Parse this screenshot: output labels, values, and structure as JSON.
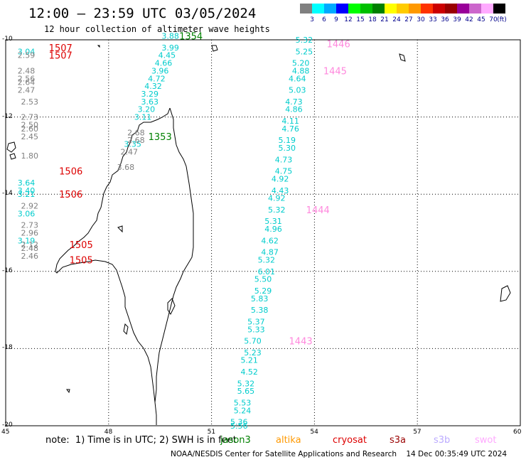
{
  "header": {
    "title": "12:00 – 23:59 UTC 03/05/2024",
    "subtitle": "12 hour collection of altimeter wave heights"
  },
  "legend": {
    "unit": "(ft)",
    "labels": [
      "3",
      "6",
      "9",
      "12",
      "15",
      "18",
      "21",
      "24",
      "27",
      "30",
      "33",
      "36",
      "39",
      "42",
      "45",
      "70"
    ],
    "colors": [
      "#808080",
      "#00ffff",
      "#00aaff",
      "#0000ff",
      "#00ff00",
      "#00c000",
      "#008000",
      "#ffff00",
      "#ffcc00",
      "#ff9900",
      "#ff3300",
      "#cc0000",
      "#990000",
      "#990099",
      "#cc66cc",
      "#ffaaff",
      "#000000"
    ]
  },
  "axes": {
    "lat_labels": [
      "-10",
      "-12",
      "-14",
      "-16",
      "-18",
      "-20"
    ],
    "lon_labels": [
      "45",
      "48",
      "51",
      "54",
      "57",
      "60"
    ]
  },
  "tracks": [
    {
      "satellite": "jason3",
      "color": "#00cccc",
      "points": [
        {
          "lat": -10.3,
          "lon": 45.6,
          "swh": "3.04"
        },
        {
          "lat": -13.7,
          "lon": 45.6,
          "swh": "3.64"
        },
        {
          "lat": -13.9,
          "lon": 45.6,
          "swh": "3.40"
        },
        {
          "lat": -14.0,
          "lon": 45.6,
          "swh": "3.21"
        },
        {
          "lat": -14.5,
          "lon": 45.6,
          "swh": "3.06"
        },
        {
          "lat": -15.2,
          "lon": 45.6,
          "swh": "3.19"
        },
        {
          "lat": -9.9,
          "lon": 49.8,
          "swh": "3.88"
        },
        {
          "lat": -10.2,
          "lon": 49.8,
          "swh": "3.99"
        },
        {
          "lat": -10.4,
          "lon": 49.7,
          "swh": "4.45"
        },
        {
          "lat": -10.6,
          "lon": 49.6,
          "swh": "4.66"
        },
        {
          "lat": -10.8,
          "lon": 49.5,
          "swh": "3.96"
        },
        {
          "lat": -11.0,
          "lon": 49.4,
          "swh": "4.72"
        },
        {
          "lat": -11.2,
          "lon": 49.3,
          "swh": "4.32"
        },
        {
          "lat": -11.4,
          "lon": 49.2,
          "swh": "3.29"
        },
        {
          "lat": -11.6,
          "lon": 49.2,
          "swh": "3.63"
        },
        {
          "lat": -11.8,
          "lon": 49.1,
          "swh": "3.20"
        },
        {
          "lat": -12.0,
          "lon": 49.0,
          "swh": "3.11"
        },
        {
          "lat": -12.7,
          "lon": 48.7,
          "swh": "3.35"
        },
        {
          "lat": -10.0,
          "lon": 53.7,
          "swh": "5.32"
        },
        {
          "lat": -10.3,
          "lon": 53.7,
          "swh": "5.25"
        },
        {
          "lat": -10.6,
          "lon": 53.6,
          "swh": "5.20"
        },
        {
          "lat": -10.8,
          "lon": 53.6,
          "swh": "4.88"
        },
        {
          "lat": -11.0,
          "lon": 53.5,
          "swh": "4.64"
        },
        {
          "lat": -11.3,
          "lon": 53.5,
          "swh": "5.03"
        },
        {
          "lat": -11.6,
          "lon": 53.4,
          "swh": "4.73"
        },
        {
          "lat": -11.8,
          "lon": 53.4,
          "swh": "4.86"
        },
        {
          "lat": -12.1,
          "lon": 53.3,
          "swh": "4.11"
        },
        {
          "lat": -12.3,
          "lon": 53.3,
          "swh": "4.76"
        },
        {
          "lat": -12.6,
          "lon": 53.2,
          "swh": "5.19"
        },
        {
          "lat": -12.8,
          "lon": 53.2,
          "swh": "5.30"
        },
        {
          "lat": -13.1,
          "lon": 53.1,
          "swh": "4.73"
        },
        {
          "lat": -13.4,
          "lon": 53.1,
          "swh": "4.75"
        },
        {
          "lat": -13.6,
          "lon": 53.0,
          "swh": "4.92"
        },
        {
          "lat": -13.9,
          "lon": 53.0,
          "swh": "4.43"
        },
        {
          "lat": -14.1,
          "lon": 52.9,
          "swh": "4.92"
        },
        {
          "lat": -14.4,
          "lon": 52.9,
          "swh": "5.32"
        },
        {
          "lat": -14.7,
          "lon": 52.8,
          "swh": "5.31"
        },
        {
          "lat": -14.9,
          "lon": 52.8,
          "swh": "4.96"
        },
        {
          "lat": -15.2,
          "lon": 52.7,
          "swh": "4.62"
        },
        {
          "lat": -15.5,
          "lon": 52.7,
          "swh": "4.87"
        },
        {
          "lat": -15.7,
          "lon": 52.6,
          "swh": "5.32"
        },
        {
          "lat": -16.0,
          "lon": 52.6,
          "swh": "6.01"
        },
        {
          "lat": -16.2,
          "lon": 52.5,
          "swh": "5.50"
        },
        {
          "lat": -16.5,
          "lon": 52.5,
          "swh": "5.29"
        },
        {
          "lat": -16.7,
          "lon": 52.4,
          "swh": "5.83"
        },
        {
          "lat": -17.0,
          "lon": 52.4,
          "swh": "5.38"
        },
        {
          "lat": -17.3,
          "lon": 52.3,
          "swh": "5.37"
        },
        {
          "lat": -17.5,
          "lon": 52.3,
          "swh": "5.33"
        },
        {
          "lat": -17.8,
          "lon": 52.2,
          "swh": "5.70"
        },
        {
          "lat": -18.1,
          "lon": 52.2,
          "swh": "5.23"
        },
        {
          "lat": -18.3,
          "lon": 52.1,
          "swh": "5.21"
        },
        {
          "lat": -18.6,
          "lon": 52.1,
          "swh": "4.52"
        },
        {
          "lat": -18.9,
          "lon": 52.0,
          "swh": "5.32"
        },
        {
          "lat": -19.1,
          "lon": 52.0,
          "swh": "5.65"
        },
        {
          "lat": -19.4,
          "lon": 51.9,
          "swh": "5.53"
        },
        {
          "lat": -19.6,
          "lon": 51.9,
          "swh": "5.24"
        },
        {
          "lat": -19.9,
          "lon": 51.8,
          "swh": "5.36"
        },
        {
          "lat": -20.0,
          "lon": 51.8,
          "swh": "5.56"
        }
      ]
    },
    {
      "satellite": "gray",
      "color": "#808080",
      "points": [
        {
          "lat": -10.4,
          "lon": 45.6,
          "swh": "2.59"
        },
        {
          "lat": -10.8,
          "lon": 45.6,
          "swh": "2.48"
        },
        {
          "lat": -11.0,
          "lon": 45.6,
          "swh": "2.56"
        },
        {
          "lat": -11.1,
          "lon": 45.6,
          "swh": "2.64"
        },
        {
          "lat": -11.3,
          "lon": 45.6,
          "swh": "2.47"
        },
        {
          "lat": -11.6,
          "lon": 45.7,
          "swh": "2.53"
        },
        {
          "lat": -12.0,
          "lon": 45.7,
          "swh": "2.73"
        },
        {
          "lat": -12.2,
          "lon": 45.7,
          "swh": "2.50"
        },
        {
          "lat": -12.3,
          "lon": 45.7,
          "swh": "2.60"
        },
        {
          "lat": -12.5,
          "lon": 45.7,
          "swh": "2.45"
        },
        {
          "lat": -13.0,
          "lon": 45.7,
          "swh": "1.80"
        },
        {
          "lat": -14.3,
          "lon": 45.7,
          "swh": "2.92"
        },
        {
          "lat": -14.8,
          "lon": 45.7,
          "swh": "2.73"
        },
        {
          "lat": -15.0,
          "lon": 45.7,
          "swh": "2.96"
        },
        {
          "lat": -15.3,
          "lon": 45.7,
          "swh": "2.12"
        },
        {
          "lat": -15.4,
          "lon": 45.7,
          "swh": "2.48"
        },
        {
          "lat": -15.6,
          "lon": 45.7,
          "swh": "2.46"
        },
        {
          "lat": -12.4,
          "lon": 48.8,
          "swh": "2.68"
        },
        {
          "lat": -12.6,
          "lon": 48.8,
          "swh": "2.68"
        },
        {
          "lat": -12.9,
          "lon": 48.6,
          "swh": "2.47"
        },
        {
          "lat": -13.3,
          "lon": 48.5,
          "swh": "3.68"
        }
      ]
    }
  ],
  "pass_labels": [
    {
      "lat": -10.2,
      "lon": 46.6,
      "text": "1507",
      "color": "#dd0000"
    },
    {
      "lat": -10.4,
      "lon": 46.6,
      "text": "1507",
      "color": "#dd0000"
    },
    {
      "lat": -13.4,
      "lon": 46.9,
      "text": "1506",
      "color": "#dd0000"
    },
    {
      "lat": -14.0,
      "lon": 46.9,
      "text": "1506",
      "color": "#dd0000"
    },
    {
      "lat": -15.3,
      "lon": 47.2,
      "text": "1505",
      "color": "#dd0000"
    },
    {
      "lat": -15.7,
      "lon": 47.2,
      "text": "1505",
      "color": "#dd0000"
    },
    {
      "lat": -9.9,
      "lon": 50.4,
      "text": "1354",
      "color": "#008000"
    },
    {
      "lat": -12.5,
      "lon": 49.5,
      "text": "1353",
      "color": "#008000"
    },
    {
      "lat": -10.1,
      "lon": 54.7,
      "text": "1446",
      "color": "#ff88dd"
    },
    {
      "lat": -10.8,
      "lon": 54.6,
      "text": "1445",
      "color": "#ff88dd"
    },
    {
      "lat": -14.4,
      "lon": 54.1,
      "text": "1444",
      "color": "#ff88dd"
    },
    {
      "lat": -17.8,
      "lon": 53.6,
      "text": "1443",
      "color": "#ff88dd"
    }
  ],
  "footer": {
    "note": "note:  1) Time is in UTC; 2) SWH is in feet",
    "satellites": [
      {
        "name": "jason3",
        "color": "#008000"
      },
      {
        "name": "altika",
        "color": "#ff9900"
      },
      {
        "name": "cryosat",
        "color": "#dd0000"
      },
      {
        "name": "s3a",
        "color": "#990000"
      },
      {
        "name": "s3b",
        "color": "#bbaaff"
      },
      {
        "name": "swot",
        "color": "#ffaaff"
      }
    ],
    "credit": "NOAA/NESDIS Center for Satellite Applications and Research    14 Dec 00:35:49 UTC 2024"
  }
}
